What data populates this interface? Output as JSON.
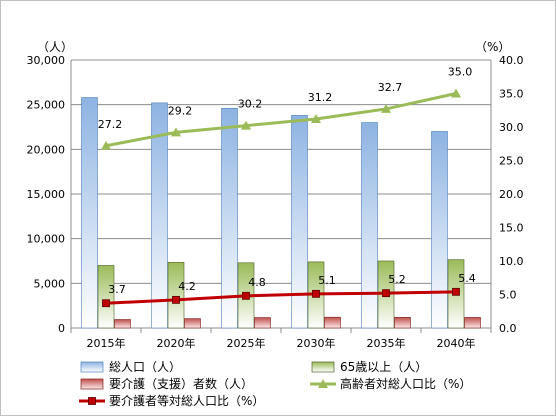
{
  "chart_data": {
    "type": "bar",
    "categories": [
      "2015年",
      "2020年",
      "2025年",
      "2030年",
      "2035年",
      "2040年"
    ],
    "series": [
      {
        "name": "総人口（人）",
        "kind": "bar",
        "axis": "left",
        "color": "#8db3e2",
        "values": [
          25800,
          25200,
          24600,
          23800,
          23000,
          22000
        ]
      },
      {
        "name": "65歳以上（人）",
        "kind": "bar",
        "axis": "left",
        "color": "#9bbb59",
        "values": [
          7000,
          7350,
          7300,
          7400,
          7500,
          7650
        ]
      },
      {
        "name": "要介護（支援）者数（人）",
        "kind": "bar",
        "axis": "left",
        "color": "#c0504d",
        "values": [
          950,
          1050,
          1170,
          1210,
          1190,
          1180
        ]
      },
      {
        "name": "高齢者対総人口比（%）",
        "kind": "line",
        "axis": "right",
        "color": "#9bbb59",
        "values": [
          27.2,
          29.2,
          30.2,
          31.2,
          32.7,
          35.0
        ],
        "labels": [
          "27.2",
          "29.2",
          "30.2",
          "31.2",
          "32.7",
          "35.0"
        ]
      },
      {
        "name": "要介護者等対総人口比（%）",
        "kind": "line",
        "axis": "right",
        "color": "#c00000",
        "values": [
          3.7,
          4.2,
          4.8,
          5.1,
          5.2,
          5.4
        ],
        "labels": [
          "3.7",
          "4.2",
          "4.8",
          "5.1",
          "5.2",
          "5.4"
        ]
      }
    ],
    "left_axis": {
      "unit": "（人）",
      "ylim": [
        0,
        30000
      ],
      "ticks": [
        "0",
        "5,000",
        "10,000",
        "15,000",
        "20,000",
        "25,000",
        "30,000"
      ]
    },
    "right_axis": {
      "unit": "（%）",
      "ylim": [
        0,
        40
      ],
      "ticks": [
        "0.0",
        "5.0",
        "10.0",
        "15.0",
        "20.0",
        "25.0",
        "30.0",
        "35.0",
        "40.0"
      ]
    },
    "grid": true,
    "legend": "bottom"
  }
}
